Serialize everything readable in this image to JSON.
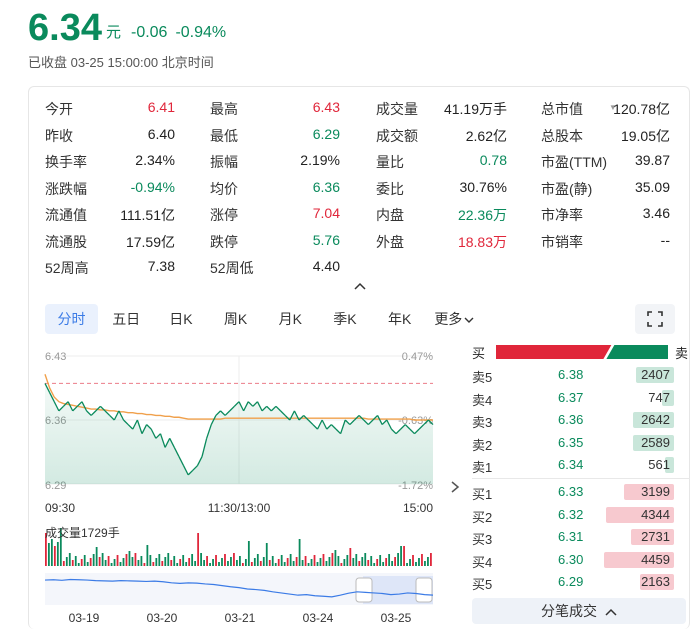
{
  "quote": {
    "price": "6.34",
    "unit": "元",
    "change": "-0.06",
    "change_pct": "-0.94%",
    "status": "已收盘",
    "datetime": "03-25 15:00:00",
    "timezone": "北京时间"
  },
  "stats": [
    [
      {
        "label": "今开",
        "value": "6.41",
        "color": "red"
      },
      {
        "label": "最高",
        "value": "6.43",
        "color": "red"
      },
      {
        "label": "成交量",
        "value": "41.19万手",
        "color": ""
      },
      {
        "label": "总市值",
        "value": "120.78亿",
        "color": "",
        "dropdown": true
      }
    ],
    [
      {
        "label": "昨收",
        "value": "6.40",
        "color": ""
      },
      {
        "label": "最低",
        "value": "6.29",
        "color": "green"
      },
      {
        "label": "成交额",
        "value": "2.62亿",
        "color": ""
      },
      {
        "label": "总股本",
        "value": "19.05亿",
        "color": ""
      }
    ],
    [
      {
        "label": "换手率",
        "value": "2.34%",
        "color": ""
      },
      {
        "label": "振幅",
        "value": "2.19%",
        "color": ""
      },
      {
        "label": "量比",
        "value": "0.78",
        "color": "green"
      },
      {
        "label": "市盈(TTM)",
        "value": "39.87",
        "color": ""
      }
    ],
    [
      {
        "label": "涨跌幅",
        "value": "-0.94%",
        "color": "green"
      },
      {
        "label": "均价",
        "value": "6.36",
        "color": "green"
      },
      {
        "label": "委比",
        "value": "30.76%",
        "color": ""
      },
      {
        "label": "市盈(静)",
        "value": "35.09",
        "color": ""
      }
    ],
    [
      {
        "label": "流通值",
        "value": "111.51亿",
        "color": ""
      },
      {
        "label": "涨停",
        "value": "7.04",
        "color": "red"
      },
      {
        "label": "内盘",
        "value": "22.36万",
        "color": "green"
      },
      {
        "label": "市净率",
        "value": "3.46",
        "color": ""
      }
    ],
    [
      {
        "label": "流通股",
        "value": "17.59亿",
        "color": ""
      },
      {
        "label": "跌停",
        "value": "5.76",
        "color": "green"
      },
      {
        "label": "外盘",
        "value": "18.83万",
        "color": "red"
      },
      {
        "label": "市销率",
        "value": "--",
        "color": ""
      }
    ],
    [
      {
        "label": "52周高",
        "value": "7.38",
        "color": ""
      },
      {
        "label": "52周低",
        "value": "4.40",
        "color": ""
      }
    ]
  ],
  "tabs": [
    "分时",
    "五日",
    "日K",
    "周K",
    "月K",
    "季K",
    "年K",
    "更多"
  ],
  "active_tab": 0,
  "intraday": {
    "y_left": [
      "6.43",
      "6.36",
      "6.29"
    ],
    "y_right": [
      "0.47%",
      "-0.63%",
      "-1.72%"
    ],
    "x_labels": [
      "09:30",
      "11:30/13:00",
      "15:00"
    ],
    "price_range": [
      6.29,
      6.43
    ],
    "prev_close": 6.4,
    "price": [
      6.4,
      6.39,
      6.38,
      6.37,
      6.375,
      6.38,
      6.37,
      6.375,
      6.38,
      6.37,
      6.365,
      6.37,
      6.375,
      6.37,
      6.365,
      6.36,
      6.37,
      6.36,
      6.355,
      6.35,
      6.36,
      6.345,
      6.355,
      6.35,
      6.34,
      6.345,
      6.33,
      6.34,
      6.33,
      6.32,
      6.31,
      6.3,
      6.305,
      6.31,
      6.32,
      6.34,
      6.355,
      6.365,
      6.37,
      6.365,
      6.37,
      6.375,
      6.38,
      6.37,
      6.38,
      6.375,
      6.38,
      6.37,
      6.375,
      6.37,
      6.375,
      6.37,
      6.365,
      6.36,
      6.37,
      6.36,
      6.365,
      6.36,
      6.355,
      6.35,
      6.36,
      6.35,
      6.355,
      6.35,
      6.345,
      6.36,
      6.355,
      6.36,
      6.365,
      6.36,
      6.355,
      6.36,
      6.365,
      6.355,
      6.36,
      6.35,
      6.345,
      6.35,
      6.355,
      6.35,
      6.345,
      6.35,
      6.355,
      6.36,
      6.355
    ],
    "avg": [
      6.41,
      6.395,
      6.385,
      6.38,
      6.378,
      6.377,
      6.376,
      6.375,
      6.374,
      6.373,
      6.372,
      6.372,
      6.371,
      6.371,
      6.37,
      6.37,
      6.369,
      6.369,
      6.368,
      6.368,
      6.367,
      6.367,
      6.366,
      6.366,
      6.365,
      6.365,
      6.364,
      6.364,
      6.363,
      6.363,
      6.362,
      6.361,
      6.361,
      6.361,
      6.361,
      6.361,
      6.361,
      6.361,
      6.361,
      6.362,
      6.362,
      6.362,
      6.362,
      6.362,
      6.362,
      6.362,
      6.362,
      6.362,
      6.362,
      6.362,
      6.362,
      6.362,
      6.362,
      6.362,
      6.362,
      6.362,
      6.362,
      6.362,
      6.362,
      6.362,
      6.362,
      6.362,
      6.362,
      6.362,
      6.362,
      6.362,
      6.362,
      6.362,
      6.362,
      6.362,
      6.361,
      6.361,
      6.361,
      6.361,
      6.361,
      6.361,
      6.361,
      6.361,
      6.361,
      6.361,
      6.36,
      6.36,
      6.36,
      6.36,
      6.36
    ]
  },
  "volume_label": "成交量1729手",
  "five_day": {
    "dates": [
      "03-19",
      "03-20",
      "03-21",
      "03-24",
      "03-25"
    ],
    "series": [
      0.82,
      0.83,
      0.81,
      0.84,
      0.83,
      0.82,
      0.8,
      0.79,
      0.78,
      0.8,
      0.79,
      0.78,
      0.77,
      0.78,
      0.76,
      0.72,
      0.7,
      0.72,
      0.71,
      0.68,
      0.66,
      0.62,
      0.58,
      0.55,
      0.5,
      0.48,
      0.45,
      0.4,
      0.36,
      0.32,
      0.28,
      0.3,
      0.26,
      0.24,
      0.22,
      0.28,
      0.35,
      0.4,
      0.38,
      0.36,
      0.34,
      0.3,
      0.32,
      0.36,
      0.34,
      0.3,
      0.28
    ]
  },
  "order_book": {
    "buy_label": "买",
    "sell_label": "卖",
    "buy_ratio": 0.6476,
    "sell": [
      {
        "label": "卖5",
        "price": "6.38",
        "volume": "2407"
      },
      {
        "label": "卖4",
        "price": "6.37",
        "volume": "747"
      },
      {
        "label": "卖3",
        "price": "6.36",
        "volume": "2642"
      },
      {
        "label": "卖2",
        "price": "6.35",
        "volume": "2589"
      },
      {
        "label": "卖1",
        "price": "6.34",
        "volume": "561"
      }
    ],
    "buy": [
      {
        "label": "买1",
        "price": "6.33",
        "volume": "3199"
      },
      {
        "label": "买2",
        "price": "6.32",
        "volume": "4344"
      },
      {
        "label": "买3",
        "price": "6.31",
        "volume": "2731"
      },
      {
        "label": "买4",
        "price": "6.30",
        "volume": "4459"
      },
      {
        "label": "买5",
        "price": "6.29",
        "volume": "2163"
      }
    ],
    "trades_label": "分笔成交"
  },
  "colors": {
    "up": "#e0263a",
    "down": "#0a8a5c",
    "avg_line": "#f0a04b",
    "five_day_line": "#3b7be6",
    "accent": "#3b7be6"
  },
  "icons": {
    "dropdown": "triangle-down-icon",
    "collapse": "chevron-up-icon",
    "fullscreen": "fullscreen-icon",
    "expand": "chevron-right-icon"
  }
}
